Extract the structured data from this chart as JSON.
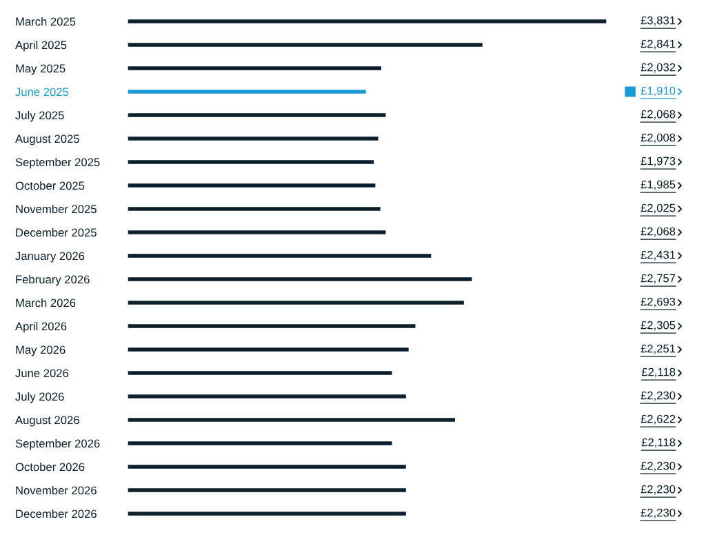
{
  "chart_data": {
    "type": "bar",
    "orientation": "horizontal",
    "categories": [
      "March 2025",
      "April 2025",
      "May 2025",
      "June 2025",
      "July 2025",
      "August 2025",
      "September 2025",
      "October 2025",
      "November 2025",
      "December 2025",
      "January 2026",
      "February 2026",
      "March 2026",
      "April 2026",
      "May 2026",
      "June 2026",
      "July 2026",
      "August 2026",
      "September 2026",
      "October 2026",
      "November 2026",
      "December 2026"
    ],
    "values": [
      3831,
      2841,
      2032,
      1910,
      2068,
      2008,
      1973,
      1985,
      2025,
      2068,
      2431,
      2757,
      2693,
      2305,
      2251,
      2118,
      2230,
      2622,
      2118,
      2230,
      2230,
      2230
    ],
    "value_labels": [
      "£3,831",
      "£2,841",
      "£2,032",
      "£1,910",
      "£2,068",
      "£2,008",
      "£1,973",
      "£1,985",
      "£2,025",
      "£2,068",
      "£2,431",
      "£2,757",
      "£2,693",
      "£2,305",
      "£2,251",
      "£2,118",
      "£2,230",
      "£2,622",
      "£2,118",
      "£2,230",
      "£2,230",
      "£2,230"
    ],
    "colors": [
      "#0d1f2d",
      "#0d1f2d",
      "#0d1f2d",
      "#1a9ad6",
      "#0d1f2d",
      "#0d1f2d",
      "#0d1f2d",
      "#0d1f2d",
      "#0d1f2d",
      "#0d1f2d",
      "#0d1f2d",
      "#0d1f2d",
      "#0d1f2d",
      "#0d1f2d",
      "#0d1f2d",
      "#0d1f2d",
      "#0d1f2d",
      "#0d1f2d",
      "#0d1f2d",
      "#0d1f2d",
      "#0d1f2d",
      "#0d1f2d"
    ],
    "legend": false,
    "grid": false
  }
}
